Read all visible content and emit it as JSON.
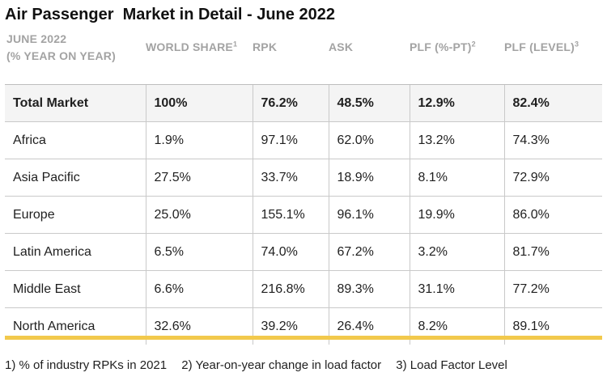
{
  "title": "Air Passenger  Market in Detail - June 2022",
  "header": {
    "col0_line1": "JUNE 2022",
    "col0_line2": "(% YEAR ON YEAR)",
    "col1": "WORLD SHARE",
    "col1_sup": "1",
    "col2": "RPK",
    "col3": "ASK",
    "col4": "PLF (%-PT)",
    "col4_sup": "2",
    "col5": "PLF (LEVEL)",
    "col5_sup": "3"
  },
  "rows": [
    {
      "region": "Total Market",
      "world_share": "100%",
      "rpk": "76.2%",
      "ask": "48.5%",
      "plf_pt": "12.9%",
      "plf_level": "82.4%"
    },
    {
      "region": "Africa",
      "world_share": "1.9%",
      "rpk": "97.1%",
      "ask": "62.0%",
      "plf_pt": "13.2%",
      "plf_level": "74.3%"
    },
    {
      "region": "Asia Pacific",
      "world_share": "27.5%",
      "rpk": "33.7%",
      "ask": "18.9%",
      "plf_pt": "8.1%",
      "plf_level": "72.9%"
    },
    {
      "region": "Europe",
      "world_share": "25.0%",
      "rpk": "155.1%",
      "ask": "96.1%",
      "plf_pt": "19.9%",
      "plf_level": "86.0%"
    },
    {
      "region": "Latin America",
      "world_share": "6.5%",
      "rpk": "74.0%",
      "ask": "67.2%",
      "plf_pt": "3.2%",
      "plf_level": "81.7%"
    },
    {
      "region": "Middle East",
      "world_share": "6.6%",
      "rpk": "216.8%",
      "ask": "89.3%",
      "plf_pt": "31.1%",
      "plf_level": "77.2%"
    },
    {
      "region": "North America",
      "world_share": "32.6%",
      "rpk": "39.2%",
      "ask": "26.4%",
      "plf_pt": "8.2%",
      "plf_level": "89.1%"
    }
  ],
  "footnotes": [
    "1) % of industry RPKs in 2021",
    "2) Year-on-year change in load factor",
    "3) Load Factor Level"
  ],
  "colors": {
    "accent": "#f2c94c",
    "header_text": "#a3a3a3",
    "total_row_bg": "#f4f4f4",
    "grid": "#c9c9c9"
  }
}
